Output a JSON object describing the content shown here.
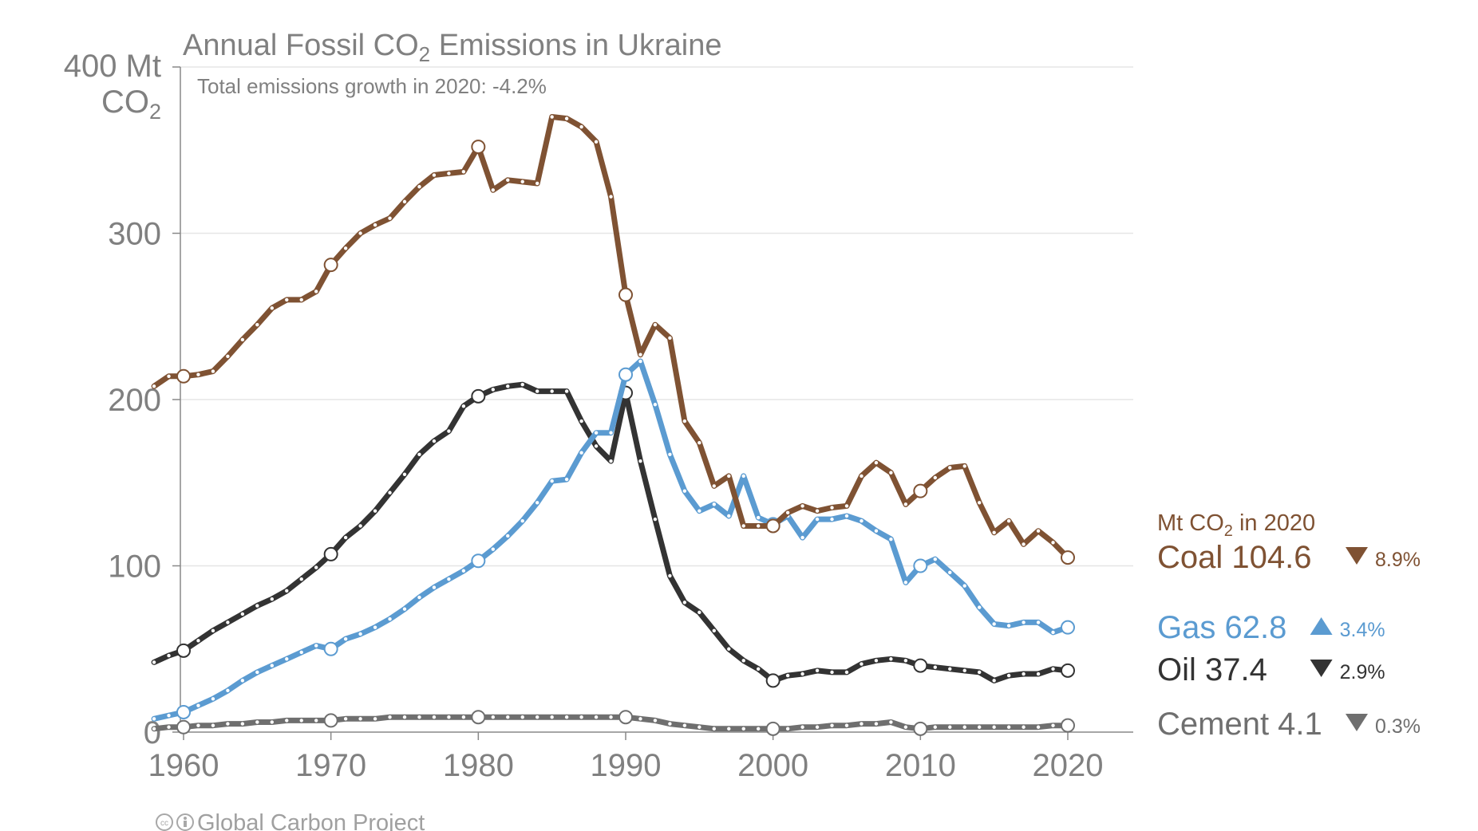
{
  "chart_data": {
    "type": "line",
    "title": "Annual Fossil CO",
    "title_subscript": "2",
    "title_suffix": " Emissions in Ukraine",
    "subtitle": "Total emissions growth in 2020: -4.2%",
    "ylabel_line1": "400 Mt",
    "ylabel_line2": "CO",
    "ylabel_sub": "2",
    "ylim": [
      0,
      400
    ],
    "yticks": [
      "0",
      "100",
      "200",
      "300"
    ],
    "ytick_values": [
      0,
      100,
      200,
      300
    ],
    "xlim": [
      1958,
      2020
    ],
    "xticks": [
      "1960",
      "1970",
      "1980",
      "1990",
      "2000",
      "2010",
      "2020"
    ],
    "xtick_values": [
      1960,
      1970,
      1980,
      1990,
      2000,
      2010,
      2020
    ],
    "grid": true,
    "legend_header": "Mt CO",
    "legend_header_sub": "2",
    "legend_header_suffix": " in 2020",
    "footer": "Global Carbon Project",
    "x": [
      1958,
      1959,
      1960,
      1961,
      1962,
      1963,
      1964,
      1965,
      1966,
      1967,
      1968,
      1969,
      1970,
      1971,
      1972,
      1973,
      1974,
      1975,
      1976,
      1977,
      1978,
      1979,
      1980,
      1981,
      1982,
      1983,
      1984,
      1985,
      1986,
      1987,
      1988,
      1989,
      1990,
      1991,
      1992,
      1993,
      1994,
      1995,
      1996,
      1997,
      1998,
      1999,
      2000,
      2001,
      2002,
      2003,
      2004,
      2005,
      2006,
      2007,
      2008,
      2009,
      2010,
      2011,
      2012,
      2013,
      2014,
      2015,
      2016,
      2017,
      2018,
      2019,
      2020
    ],
    "series": [
      {
        "name": "Coal",
        "label": "Coal 104.6",
        "change": "8.9%",
        "direction": "down",
        "color": "#7f5233",
        "values": [
          208,
          214,
          214,
          215,
          217,
          226,
          236,
          245,
          255,
          260,
          260,
          265,
          281,
          291,
          300,
          305,
          309,
          319,
          328,
          335,
          336,
          337,
          352,
          326,
          332,
          331,
          330,
          370,
          369,
          364,
          355,
          322,
          263,
          227,
          245,
          237,
          187,
          174,
          148,
          154,
          124,
          124,
          124,
          132,
          136,
          133,
          135,
          136,
          154,
          162,
          156,
          137,
          145,
          153,
          159,
          160,
          138,
          120,
          127,
          113,
          121,
          114,
          105
        ]
      },
      {
        "name": "Gas",
        "label": "Gas 62.8",
        "change": "3.4%",
        "direction": "up",
        "color": "#5b9bd1",
        "values": [
          8,
          10,
          12,
          16,
          20,
          25,
          31,
          36,
          40,
          44,
          48,
          52,
          50,
          56,
          59,
          63,
          68,
          74,
          81,
          87,
          92,
          97,
          103,
          110,
          118,
          127,
          138,
          151,
          152,
          168,
          180,
          180,
          215,
          223,
          197,
          167,
          145,
          133,
          137,
          130,
          154,
          129,
          125,
          130,
          117,
          128,
          128,
          130,
          127,
          121,
          116,
          90,
          100,
          104,
          96,
          88,
          75,
          65,
          64,
          66,
          66,
          60,
          63
        ]
      },
      {
        "name": "Oil",
        "label": "Oil 37.4",
        "change": "2.9%",
        "direction": "down",
        "color": "#333333",
        "values": [
          42,
          46,
          49,
          55,
          61,
          66,
          71,
          76,
          80,
          85,
          92,
          99,
          107,
          117,
          124,
          133,
          144,
          155,
          167,
          175,
          181,
          196,
          202,
          206,
          208,
          209,
          205,
          205,
          205,
          187,
          172,
          163,
          204,
          163,
          128,
          94,
          78,
          72,
          61,
          50,
          43,
          38,
          31,
          34,
          35,
          37,
          36,
          36,
          41,
          43,
          44,
          43,
          40,
          39,
          38,
          37,
          36,
          31,
          34,
          35,
          35,
          38,
          37
        ]
      },
      {
        "name": "Cement",
        "label": "Cement 4.1",
        "change": "0.3%",
        "direction": "down",
        "color": "#6f6f6f",
        "values": [
          2,
          3,
          3,
          4,
          4,
          5,
          5,
          6,
          6,
          7,
          7,
          7,
          7,
          8,
          8,
          8,
          9,
          9,
          9,
          9,
          9,
          9,
          9,
          9,
          9,
          9,
          9,
          9,
          9,
          9,
          9,
          9,
          9,
          8,
          7,
          5,
          4,
          3,
          2,
          2,
          2,
          2,
          2,
          2,
          3,
          3,
          4,
          4,
          5,
          5,
          6,
          3,
          2,
          3,
          3,
          3,
          3,
          3,
          3,
          3,
          3,
          4,
          4
        ]
      }
    ]
  }
}
